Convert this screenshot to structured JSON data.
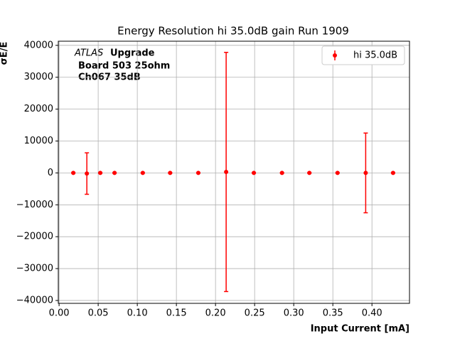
{
  "chart_data": {
    "type": "errorbar",
    "title": "Energy Resolution hi 35.0dB gain Run 1909",
    "x_label": "Input Current [mA]",
    "y_label": "σE/E",
    "annotation": {
      "experiment": "ATLAS",
      "label": "Upgrade",
      "lines": [
        "Board 503 25ohm",
        "Ch067 35dB"
      ]
    },
    "x": [
      0.0182,
      0.0355,
      0.0527,
      0.0709,
      0.107,
      0.142,
      0.178,
      0.2136,
      0.249,
      0.285,
      0.32,
      0.356,
      0.392,
      0.427
    ],
    "series": [
      {
        "name": "hi 35.0dB",
        "color": "#ff0000",
        "values": [
          0,
          -200,
          0,
          0,
          0,
          0,
          0,
          300,
          0,
          0,
          0,
          0,
          0,
          0
        ],
        "yerr": [
          0,
          6500,
          0,
          0,
          0,
          0,
          0,
          37500,
          0,
          0,
          0,
          0,
          12500,
          0
        ]
      }
    ],
    "xlim": [
      -0.001,
      0.448
    ],
    "ylim": [
      -40900,
      41300
    ],
    "xticks": [
      {
        "value": 0,
        "label": "0.00"
      },
      {
        "value": 0.05,
        "label": "0.05"
      },
      {
        "value": 0.1,
        "label": "0.10"
      },
      {
        "value": 0.15,
        "label": "0.15"
      },
      {
        "value": 0.2,
        "label": "0.20"
      },
      {
        "value": 0.25,
        "label": "0.25"
      },
      {
        "value": 0.3,
        "label": "0.30"
      },
      {
        "value": 0.35,
        "label": "0.35"
      },
      {
        "value": 0.4,
        "label": "0.40"
      }
    ],
    "yticks": [
      {
        "value": -40000,
        "label": "−40000"
      },
      {
        "value": -30000,
        "label": "−30000"
      },
      {
        "value": -20000,
        "label": "−20000"
      },
      {
        "value": -10000,
        "label": "−10000"
      },
      0,
      10000,
      20000,
      30000,
      40000
    ],
    "grid": true,
    "legend": "upper right"
  }
}
